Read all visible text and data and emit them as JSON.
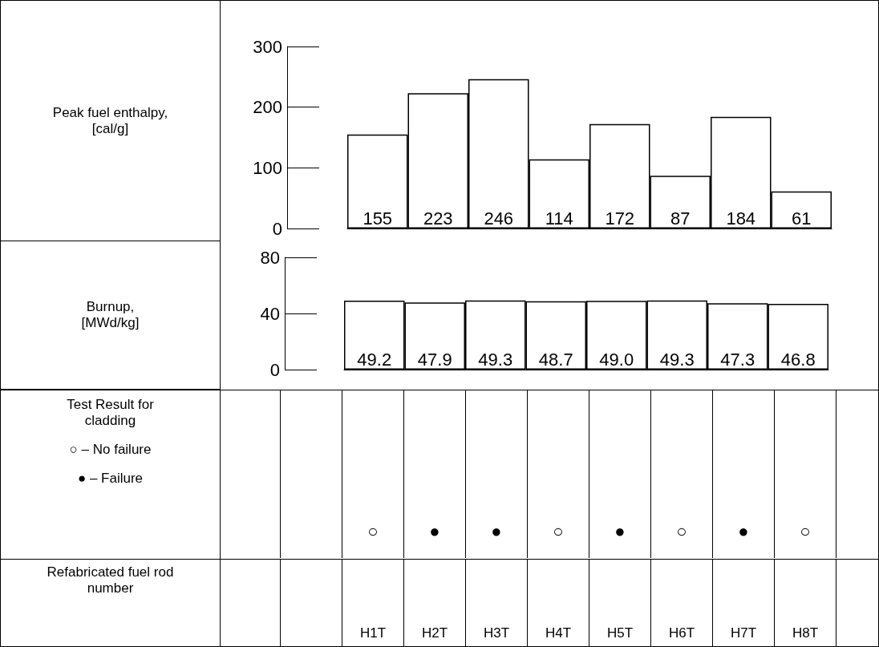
{
  "chart_data": [
    {
      "type": "bar",
      "ylabel": "Peak fuel enthalpy, [cal/g]",
      "categories": [
        null,
        null,
        null,
        null,
        null,
        null,
        null,
        null
      ],
      "values": [
        155,
        223,
        246,
        114,
        172,
        87,
        184,
        61
      ],
      "color": "#ffffff",
      "ylim": [
        0,
        300
      ],
      "yticks": [
        0,
        100,
        200,
        300
      ],
      "data_labels": true,
      "tick_labels": "y"
    },
    {
      "type": "bar",
      "ylabel": "Burnup, [MWd/kg]",
      "categories": [
        null,
        null,
        null,
        null,
        null,
        null,
        null,
        null
      ],
      "values": [
        49.2,
        47.9,
        49.3,
        48.7,
        49.0,
        49.3,
        47.3,
        46.8
      ],
      "value_labels": [
        "49.2",
        "47.9",
        "49.3",
        "48.7",
        "49.0",
        "49.3",
        "47.3",
        "46.8"
      ],
      "color": "#ffffff",
      "ylim": [
        0,
        80
      ],
      "yticks": [
        0,
        40,
        80
      ],
      "tick_labels": "y"
    },
    {
      "type": "other",
      "title": "Test Result for cladding",
      "annotations": [
        "○ – No failure",
        "● – Failure"
      ],
      "xlabel": "Refabricated fuel rod number",
      "categories": [
        "H1T",
        "H2T",
        "H3T",
        "H4T",
        "H5T",
        "H6T",
        "H7T",
        "H8T"
      ],
      "cell_labels": [
        [
          "○",
          "●",
          "●",
          "○",
          "●",
          "○",
          "●",
          "○"
        ]
      ]
    }
  ]
}
